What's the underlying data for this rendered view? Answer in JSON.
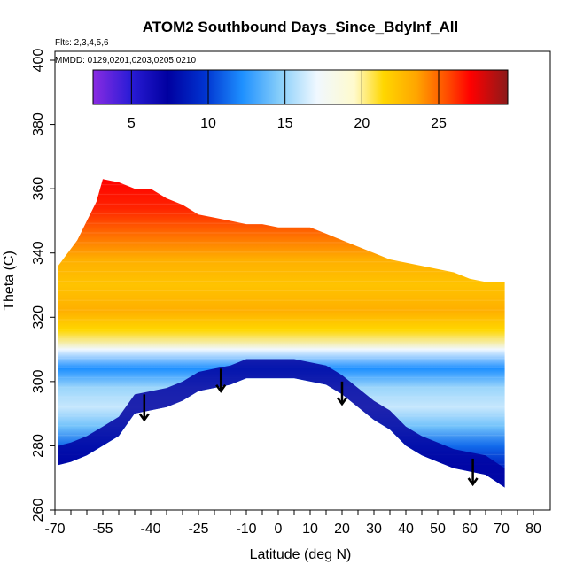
{
  "chart_data": {
    "type": "heatmap",
    "title": "ATOM2 Southbound Days_Since_BdyInf_All",
    "subtitle_flights": "Flts: 2,3,4,5,6",
    "subtitle_dates": "MMDD: 0129,0201,0203,0205,0210",
    "xlabel": "Latitude (deg N)",
    "ylabel": "Theta (C)",
    "xlim": [
      -70,
      80
    ],
    "ylim": [
      260,
      400
    ],
    "x_ticks": [
      -70,
      -65,
      -60,
      -55,
      -50,
      -45,
      -40,
      -35,
      -30,
      -25,
      -20,
      -15,
      -10,
      -5,
      0,
      5,
      10,
      15,
      20,
      25,
      30,
      35,
      40,
      45,
      50,
      55,
      60,
      65,
      70,
      75,
      80
    ],
    "x_tick_labels": [
      "-70",
      "",
      "",
      "-55",
      "",
      "",
      "-40",
      "",
      "",
      "-25",
      "",
      "",
      "-10",
      "",
      "0",
      "",
      "10",
      "",
      "20",
      "",
      "30",
      "",
      "40",
      "",
      "50",
      "",
      "60",
      "",
      "70",
      "",
      "80"
    ],
    "y_ticks": [
      260,
      280,
      300,
      320,
      340,
      360,
      380,
      400
    ],
    "y_tick_labels": [
      "260",
      "280",
      "300",
      "320",
      "340",
      "360",
      "380",
      "400"
    ],
    "colorbar": {
      "range": [
        2.5,
        29.5
      ],
      "ticks": [
        5,
        10,
        15,
        20,
        25
      ],
      "tick_labels": [
        "5",
        "10",
        "15",
        "20",
        "25"
      ]
    },
    "upper_boundary": [
      [
        -69,
        336
      ],
      [
        -66,
        340
      ],
      [
        -63,
        344
      ],
      [
        -60,
        350
      ],
      [
        -57,
        356
      ],
      [
        -55,
        363
      ],
      [
        -50,
        362
      ],
      [
        -45,
        360
      ],
      [
        -40,
        360
      ],
      [
        -35,
        357
      ],
      [
        -30,
        355
      ],
      [
        -25,
        352
      ],
      [
        -20,
        351
      ],
      [
        -15,
        350
      ],
      [
        -10,
        349
      ],
      [
        -5,
        349
      ],
      [
        0,
        348
      ],
      [
        5,
        348
      ],
      [
        10,
        348
      ],
      [
        15,
        346
      ],
      [
        20,
        344
      ],
      [
        25,
        342
      ],
      [
        30,
        340
      ],
      [
        35,
        338
      ],
      [
        40,
        337
      ],
      [
        45,
        336
      ],
      [
        50,
        335
      ],
      [
        55,
        334
      ],
      [
        60,
        332
      ],
      [
        65,
        331
      ],
      [
        71,
        331
      ]
    ],
    "lower_boundary": [
      [
        71,
        267
      ],
      [
        68,
        269
      ],
      [
        65,
        271
      ],
      [
        60,
        272
      ],
      [
        55,
        273
      ],
      [
        50,
        275
      ],
      [
        45,
        277
      ],
      [
        40,
        280
      ],
      [
        35,
        285
      ],
      [
        30,
        288
      ],
      [
        25,
        292
      ],
      [
        20,
        296
      ],
      [
        15,
        299
      ],
      [
        10,
        300
      ],
      [
        5,
        301
      ],
      [
        0,
        301
      ],
      [
        -5,
        301
      ],
      [
        -10,
        301
      ],
      [
        -15,
        299
      ],
      [
        -20,
        298
      ],
      [
        -25,
        297
      ],
      [
        -30,
        294
      ],
      [
        -35,
        292
      ],
      [
        -40,
        291
      ],
      [
        -45,
        290
      ],
      [
        -50,
        283
      ],
      [
        -55,
        280
      ],
      [
        -60,
        277
      ],
      [
        -65,
        275
      ],
      [
        -69,
        274
      ]
    ],
    "color_bands": [
      {
        "theta": 274,
        "days": 7
      },
      {
        "theta": 280,
        "days": 9
      },
      {
        "theta": 286,
        "days": 12
      },
      {
        "theta": 292,
        "days": 14
      },
      {
        "theta": 298,
        "days": 13
      },
      {
        "theta": 304,
        "days": 10
      },
      {
        "theta": 310,
        "days": 15
      },
      {
        "theta": 316,
        "days": 20
      },
      {
        "theta": 322,
        "days": 22
      },
      {
        "theta": 330,
        "days": 21
      },
      {
        "theta": 338,
        "days": 22
      },
      {
        "theta": 346,
        "days": 24
      },
      {
        "theta": 354,
        "days": 26
      },
      {
        "theta": 363,
        "days": 27
      }
    ],
    "arrows": [
      {
        "lat": -42,
        "theta_top": 296,
        "theta_bottom": 288
      },
      {
        "lat": -18,
        "theta_top": 304,
        "theta_bottom": 297
      },
      {
        "lat": 20,
        "theta_top": 300,
        "theta_bottom": 293
      },
      {
        "lat": 61,
        "theta_top": 276,
        "theta_bottom": 268
      }
    ]
  }
}
